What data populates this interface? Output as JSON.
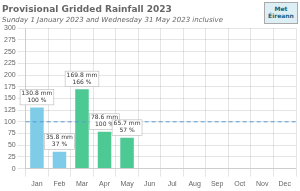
{
  "chart_data": {
    "type": "bar",
    "title": "Provisional Gridded Rainfall 2023",
    "subtitle": "Sunday 1 January 2023 and Wednesday 31 May 2023 inclusive",
    "categories": [
      "Jan",
      "Feb",
      "Mar",
      "Apr",
      "May",
      "Jun",
      "Jul",
      "Aug",
      "Sep",
      "Oct",
      "Nov",
      "Dec"
    ],
    "values": [
      130.8,
      35.8,
      169.8,
      78.6,
      65.7,
      null,
      null,
      null,
      null,
      null,
      null,
      null
    ],
    "value_labels": [
      "130.8 mm\n100 %",
      "35.8 mm\n37 %",
      "169.8 mm\n166 %",
      "78.6 mm\n100 %",
      "65.7 mm\n57 %",
      null,
      null,
      null,
      null,
      null,
      null,
      null
    ],
    "data_labels": true,
    "colors": [
      "#7ecce8",
      "#7ecce8",
      "#4dc993",
      "#4dc993",
      "#4dc993",
      null,
      null,
      null,
      null,
      null,
      null,
      null
    ],
    "ylim": [
      0,
      300
    ],
    "yticks": [
      0,
      25,
      50,
      75,
      100,
      125,
      150,
      175,
      200,
      225,
      250,
      275,
      300
    ],
    "grid": true,
    "hline": 100,
    "hline_color": "#5b9bd5",
    "annotations": [
      {
        "text": "Met\nÉireann"
      }
    ]
  }
}
